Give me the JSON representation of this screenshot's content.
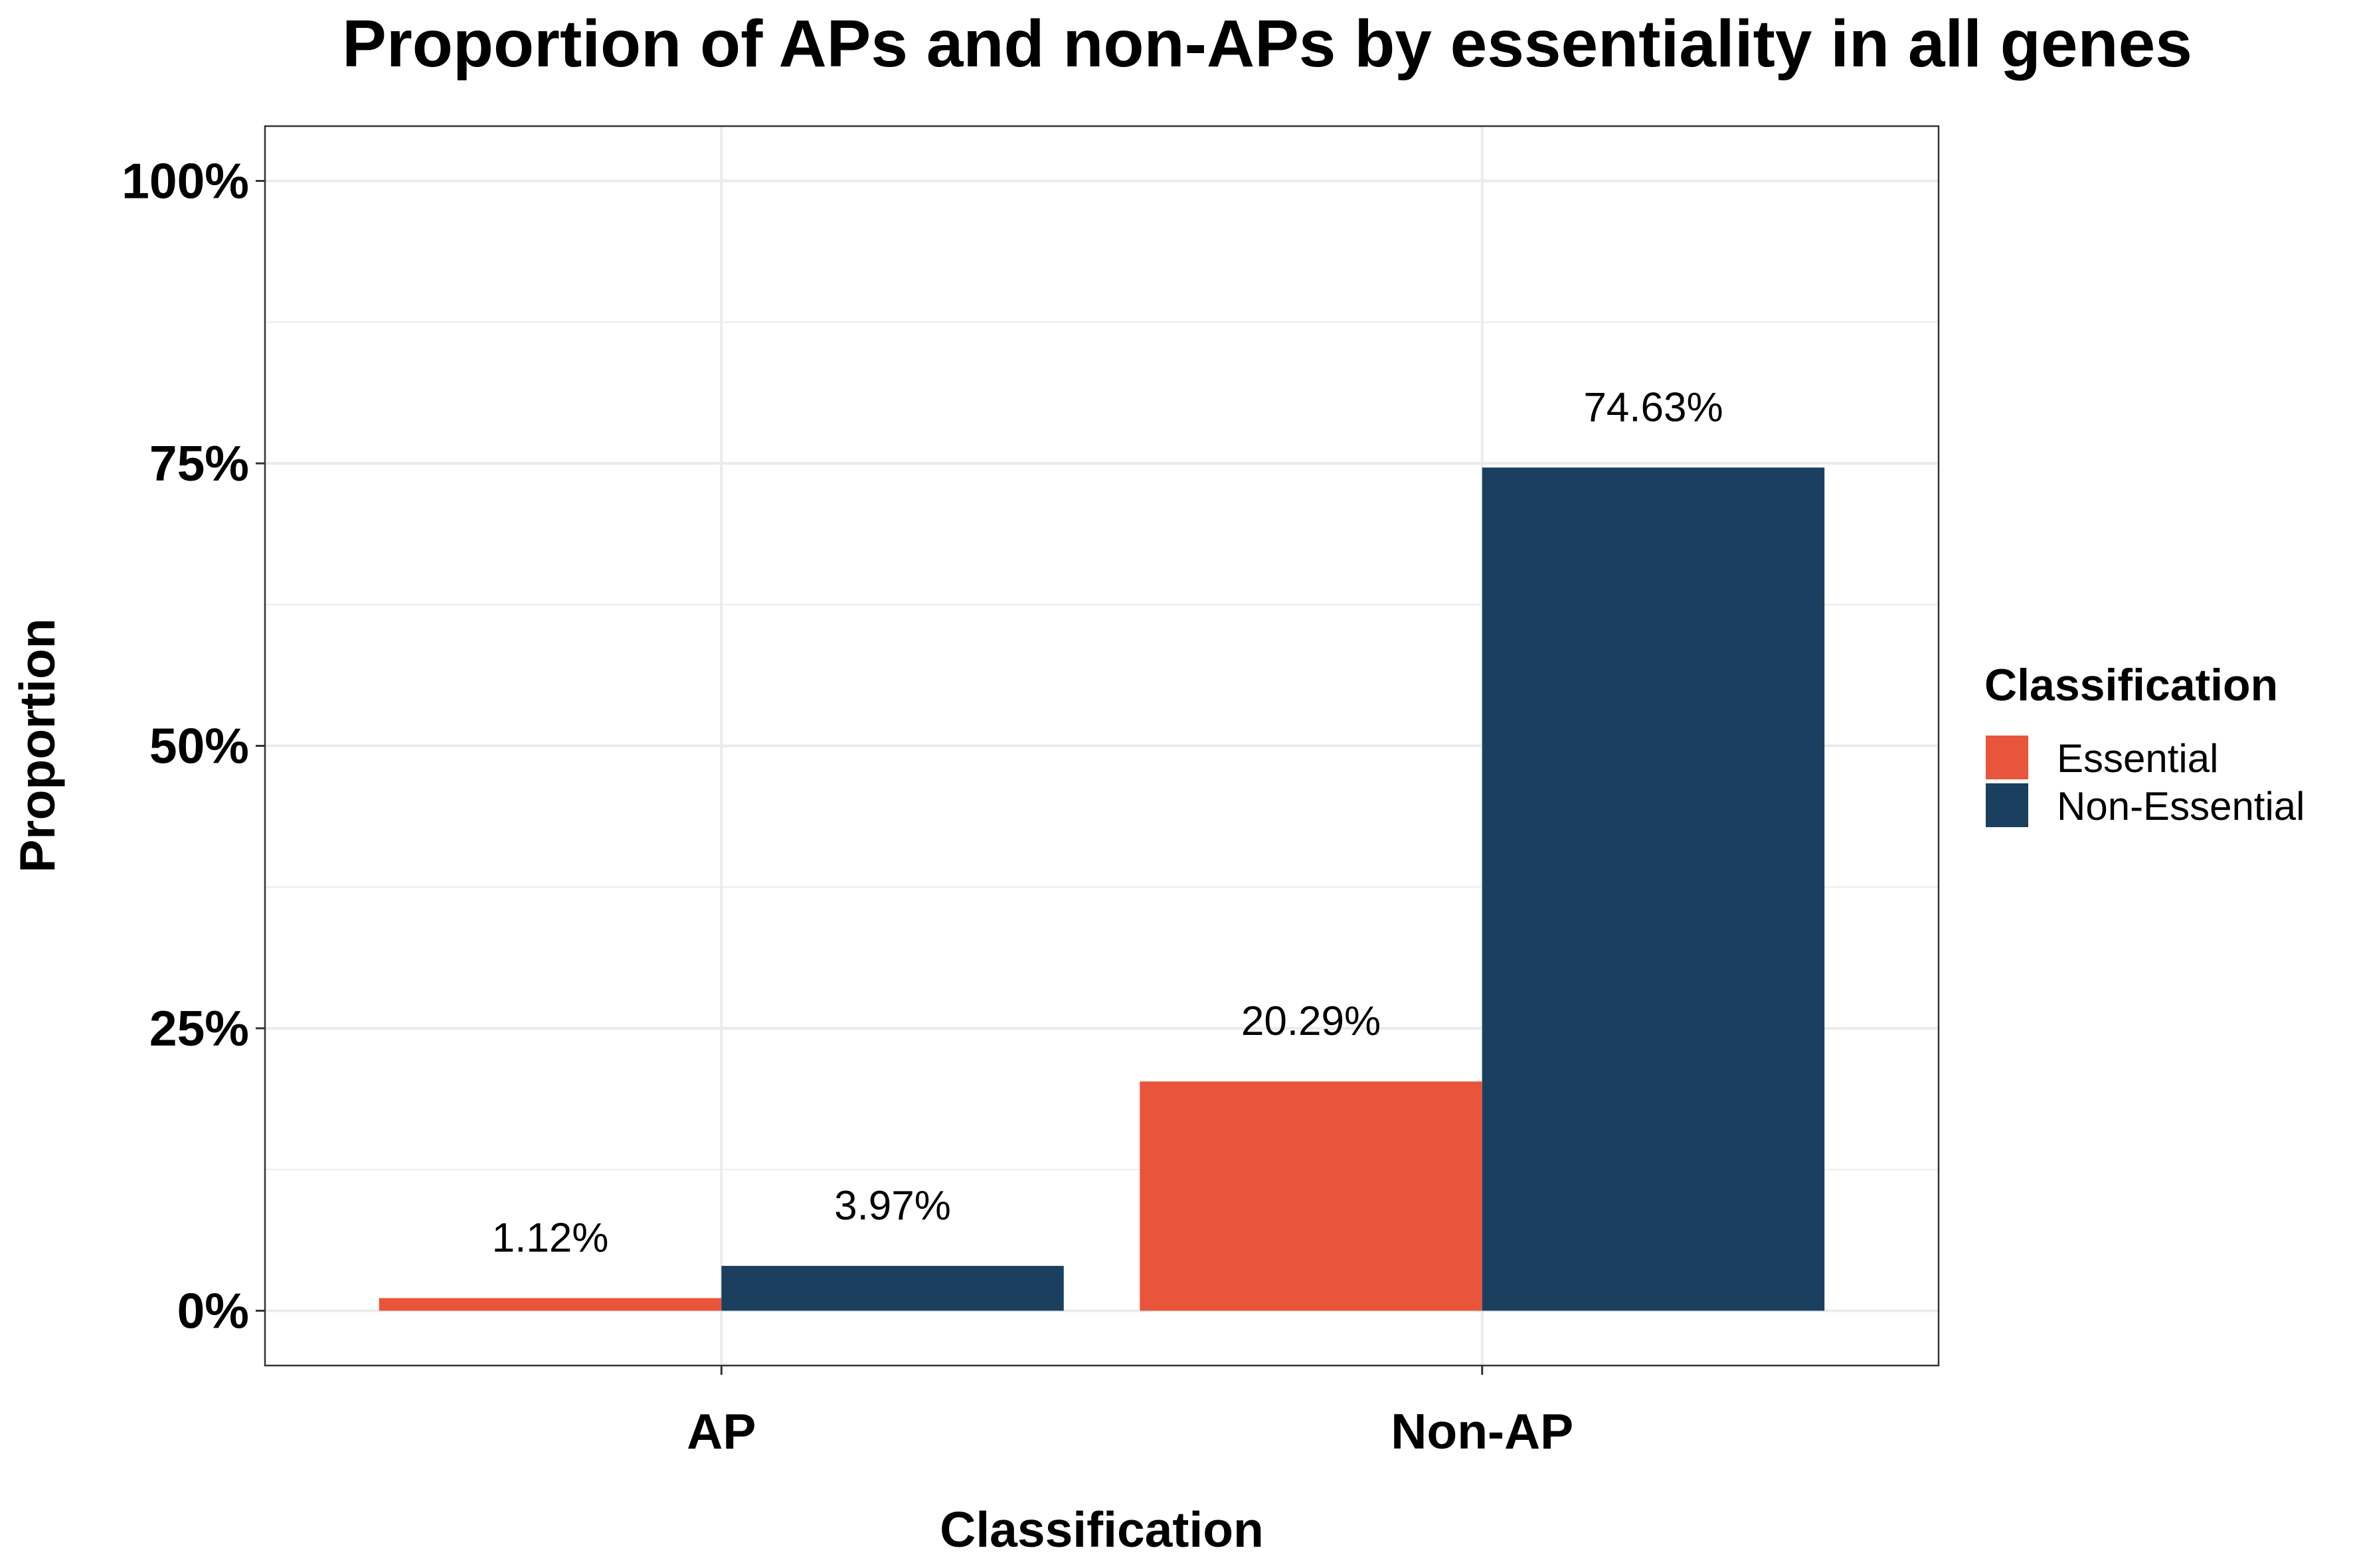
{
  "chart_data": {
    "type": "bar",
    "title": "Proportion of APs and non-APs by essentiality in all genes",
    "xlabel": "Classification",
    "ylabel": "Proportion",
    "categories": [
      "AP",
      "Non-AP"
    ],
    "series": [
      {
        "name": "Essential",
        "values": [
          1.12,
          20.29
        ],
        "labels": [
          "1.12%",
          "20.29%"
        ],
        "color": "#E8553A"
      },
      {
        "name": "Non-Essential",
        "values": [
          3.97,
          74.63
        ],
        "labels": [
          "3.97%",
          "74.63%"
        ],
        "color": "#1B3F5F"
      }
    ],
    "y_ticks": [
      {
        "value": 0,
        "label": "0%"
      },
      {
        "value": 25,
        "label": "25%"
      },
      {
        "value": 50,
        "label": "50%"
      },
      {
        "value": 75,
        "label": "75%"
      },
      {
        "value": 100,
        "label": "100%"
      }
    ],
    "ylim": [
      -4.85,
      104.85
    ],
    "grid": true,
    "legend": {
      "title": "Classification",
      "position": "right"
    }
  }
}
